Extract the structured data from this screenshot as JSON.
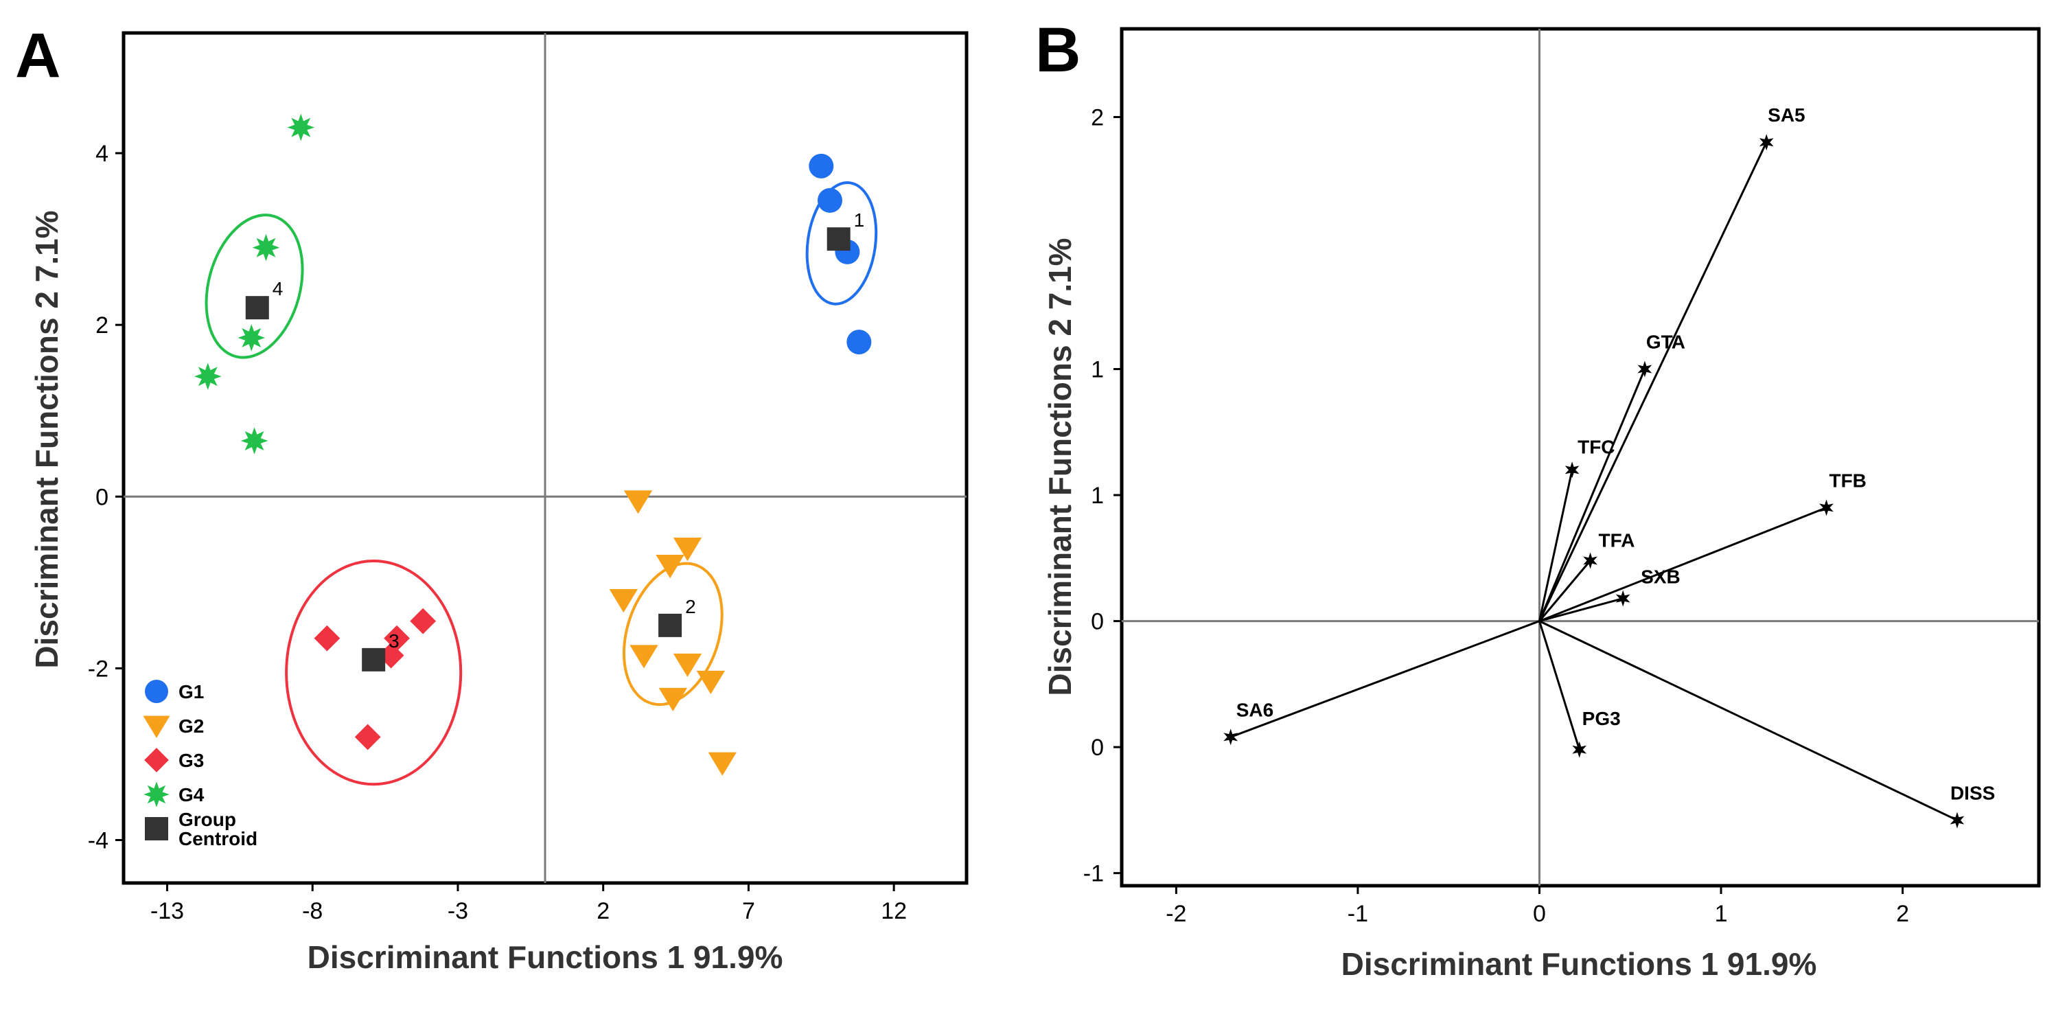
{
  "chart_data": [
    {
      "panel": "A",
      "type": "scatter",
      "xlabel": "Discriminant Functions 1 91.9%",
      "ylabel": "Discriminant Functions 2 7.1%",
      "xlim": [
        -14.5,
        14.5
      ],
      "ylim": [
        -4.5,
        5.4
      ],
      "xticks": [
        -13,
        -8,
        -3,
        2,
        7,
        12
      ],
      "yticks": [
        -4,
        -2,
        0,
        2,
        4
      ],
      "reference_lines": {
        "x": 0,
        "y": 0
      },
      "series": [
        {
          "name": "G1",
          "marker": "circle",
          "color": "#1f6fef",
          "points": [
            [
              9.5,
              3.85
            ],
            [
              9.8,
              3.45
            ],
            [
              10.4,
              2.85
            ],
            [
              10.8,
              1.8
            ]
          ]
        },
        {
          "name": "G2",
          "marker": "triangle-down",
          "color": "#f7a11a",
          "points": [
            [
              3.2,
              -0.05
            ],
            [
              4.9,
              -0.6
            ],
            [
              4.3,
              -0.8
            ],
            [
              2.7,
              -1.2
            ],
            [
              3.4,
              -1.85
            ],
            [
              4.9,
              -1.95
            ],
            [
              5.7,
              -2.15
            ],
            [
              4.4,
              -2.35
            ],
            [
              6.1,
              -3.1
            ]
          ]
        },
        {
          "name": "G3",
          "marker": "diamond",
          "color": "#ef3340",
          "points": [
            [
              -7.5,
              -1.65
            ],
            [
              -5.1,
              -1.65
            ],
            [
              -4.2,
              -1.45
            ],
            [
              -5.3,
              -1.85
            ],
            [
              -6.1,
              -2.8
            ]
          ]
        },
        {
          "name": "G4",
          "marker": "star",
          "color": "#22c04a",
          "points": [
            [
              -8.4,
              4.3
            ],
            [
              -9.6,
              2.9
            ],
            [
              -10.1,
              1.85
            ],
            [
              -11.6,
              1.4
            ],
            [
              -10.0,
              0.65
            ]
          ]
        },
        {
          "name": "Group Centroid",
          "marker": "square",
          "color": "#333333",
          "points": [
            [
              10.1,
              3.0
            ],
            [
              4.3,
              -1.5
            ],
            [
              -5.9,
              -1.9
            ],
            [
              -9.9,
              2.2
            ]
          ],
          "labels": [
            "1",
            "2",
            "3",
            "4"
          ]
        }
      ],
      "ellipses": [
        {
          "group": "G1",
          "color": "#1f6fef",
          "center": [
            10.2,
            2.95
          ],
          "rx": 2.1,
          "ry": 1.55,
          "angle": 82
        },
        {
          "group": "G2",
          "color": "#f7a11a",
          "center": [
            4.4,
            -1.6
          ],
          "rx": 2.5,
          "ry": 2.1,
          "angle": 72
        },
        {
          "group": "G3",
          "color": "#ef3340",
          "center": [
            -5.9,
            -2.05
          ],
          "rx": 3.0,
          "ry": 1.3,
          "angle": 0
        },
        {
          "group": "G4",
          "color": "#22c04a",
          "center": [
            -10.0,
            2.45
          ],
          "rx": 2.5,
          "ry": 2.1,
          "angle": 75
        }
      ],
      "legend": {
        "position": "bottom-left",
        "items": [
          {
            "label": "G1",
            "marker": "circle",
            "color": "#1f6fef"
          },
          {
            "label": "G2",
            "marker": "triangle-down",
            "color": "#f7a11a"
          },
          {
            "label": "G3",
            "marker": "diamond",
            "color": "#ef3340"
          },
          {
            "label": "G4",
            "marker": "star",
            "color": "#22c04a"
          },
          {
            "label": "Group Centroid",
            "lines": [
              "Group",
              "Centroid"
            ],
            "marker": "square",
            "color": "#333333"
          }
        ]
      }
    },
    {
      "panel": "B",
      "type": "biplot",
      "xlabel": "Discriminant Functions 1 91.9%",
      "ylabel": "Discriminant Functions 2 7.1%",
      "xlim": [
        -2.3,
        2.75
      ],
      "ylim": [
        -1.05,
        2.35
      ],
      "xticks": [
        -2,
        -1,
        0,
        1,
        2
      ],
      "ytick_values": [
        2,
        1,
        0.5,
        0,
        -0.5,
        -1
      ],
      "ytick_labels": [
        "2",
        "1",
        "1",
        "0",
        "0",
        "-1"
      ],
      "reference_lines": {
        "x": 0,
        "y": 0
      },
      "vectors": [
        {
          "name": "SA5",
          "x": 1.25,
          "y": 1.9
        },
        {
          "name": "GTA",
          "x": 0.58,
          "y": 1.0
        },
        {
          "name": "TFC",
          "x": 0.18,
          "y": 0.6
        },
        {
          "name": "TFA",
          "x": 0.28,
          "y": 0.24
        },
        {
          "name": "SXB",
          "x": 0.46,
          "y": 0.09
        },
        {
          "name": "TFB",
          "x": 1.58,
          "y": 0.45
        },
        {
          "name": "SA6",
          "x": -1.7,
          "y": -0.46
        },
        {
          "name": "PG3",
          "x": 0.22,
          "y": -0.51
        },
        {
          "name": "DISS",
          "x": 2.3,
          "y": -0.79
        }
      ]
    }
  ],
  "panels": {
    "a_label": "A",
    "b_label": "B"
  }
}
